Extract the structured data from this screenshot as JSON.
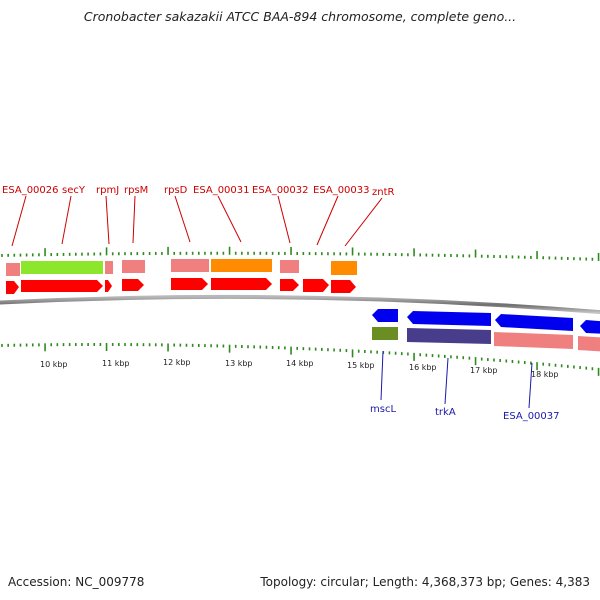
{
  "title": "Cronobacter sakazakii ATCC BAA-894 chromosome, complete geno...",
  "footer": {
    "accession": "Accession: NC_009778",
    "topology": "Topology: circular; Length: 4,368,373 bp; Genes: 4,383"
  },
  "colors": {
    "cds": "#ff0000",
    "cds_reverse": "#0000ee",
    "forward_label": "#cc0000",
    "reverse_label": "#1a1aaa",
    "tick": "#2f8a1e",
    "backbone": "#808080"
  },
  "ruler_labels": [
    "10 kbp",
    "11 kbp",
    "12 kbp",
    "13 kbp",
    "14 kbp",
    "15 kbp",
    "16 kbp",
    "17 kbp",
    "18 kbp"
  ],
  "forward_labels": [
    "ESA_00026",
    "secY",
    "rpmJ",
    "rpsM",
    "rpsD",
    "ESA_00031",
    "ESA_00032",
    "ESA_00033",
    "zntR"
  ],
  "reverse_labels": [
    "mscL",
    "trkA",
    "ESA_00037"
  ]
}
